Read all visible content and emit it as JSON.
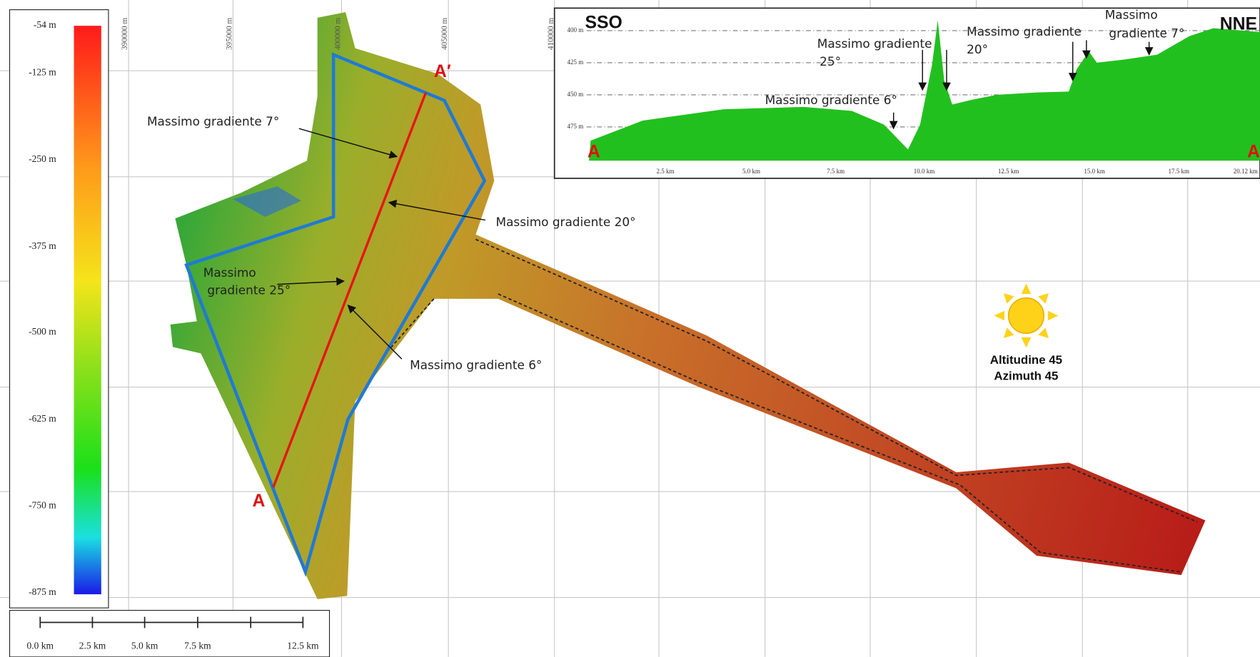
{
  "color_scale": {
    "labels": [
      "-54 m",
      "-125 m",
      "-250 m",
      "-375 m",
      "-500 m",
      "-625 m",
      "-750 m",
      "-875 m"
    ]
  },
  "map": {
    "easting_labels": [
      "390000 m",
      "395000 m",
      "400000 m",
      "405000 m",
      "410000 m"
    ],
    "annotations": [
      {
        "lines": [
          "Massimo gradiente 7°"
        ]
      },
      {
        "lines": [
          "Massimo gradiente 20°"
        ]
      },
      {
        "lines": [
          "Massimo",
          "gradiente 25°"
        ]
      },
      {
        "lines": [
          "Massimo gradiente 6°"
        ]
      }
    ],
    "section_start": "A",
    "section_end": "A′",
    "sun": {
      "lines": [
        "Altitudine 45",
        "Azimuth 45"
      ]
    }
  },
  "scale_bar": {
    "labels": [
      "0.0 km",
      "2.5 km",
      "5.0 km",
      "7.5 km",
      "12.5 km"
    ]
  },
  "profile": {
    "start_label": "SSO",
    "end_label": "NNE",
    "y_labels": [
      "400 m",
      "425 m",
      "450 m",
      "475 m"
    ],
    "x_labels": [
      "2.5 km",
      "5.0 km",
      "7.5 km",
      "10.0 km",
      "12.5 km",
      "15.0 km",
      "17.5 km",
      "20.12 km"
    ],
    "annotations": [
      {
        "lines": [
          "Massimo gradiente",
          "25°"
        ]
      },
      {
        "lines": [
          "Massimo gradiente",
          "20°"
        ]
      },
      {
        "lines": [
          "Massimo",
          "gradiente 7°"
        ]
      },
      {
        "lines": [
          "Massimo gradiente 6°"
        ]
      }
    ],
    "point_start": "A",
    "point_end": "A"
  }
}
